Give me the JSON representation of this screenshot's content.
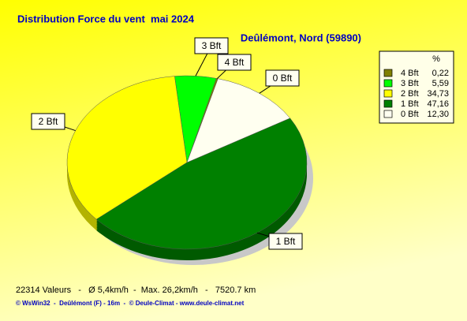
{
  "chart_data": {
    "type": "pie",
    "title": "Distribution Force du vent  mai 2024",
    "subtitle": "Deûlémont, Nord (59890)",
    "categories": [
      "4 Bft",
      "3 Bft",
      "2 Bft",
      "1 Bft",
      "0 Bft"
    ],
    "values": [
      0.22,
      5.59,
      34.73,
      47.16,
      12.3
    ],
    "value_labels": [
      "0,22",
      "5,59",
      "34,73",
      "47,16",
      "12,30"
    ],
    "colors": [
      "#808000",
      "#00ff00",
      "#ffff00",
      "#008000",
      "#fffff0"
    ],
    "legend_title": "%",
    "legend": "right"
  },
  "footer": "22314 Valeurs   -   Ø 5,4km/h  -  Max. 26,2km/h   -   7520.7 km",
  "credits": "© WsWin32  -  Deûlémont (F) - 16m  -  © Deule-Climat - www.deule-climat.net"
}
